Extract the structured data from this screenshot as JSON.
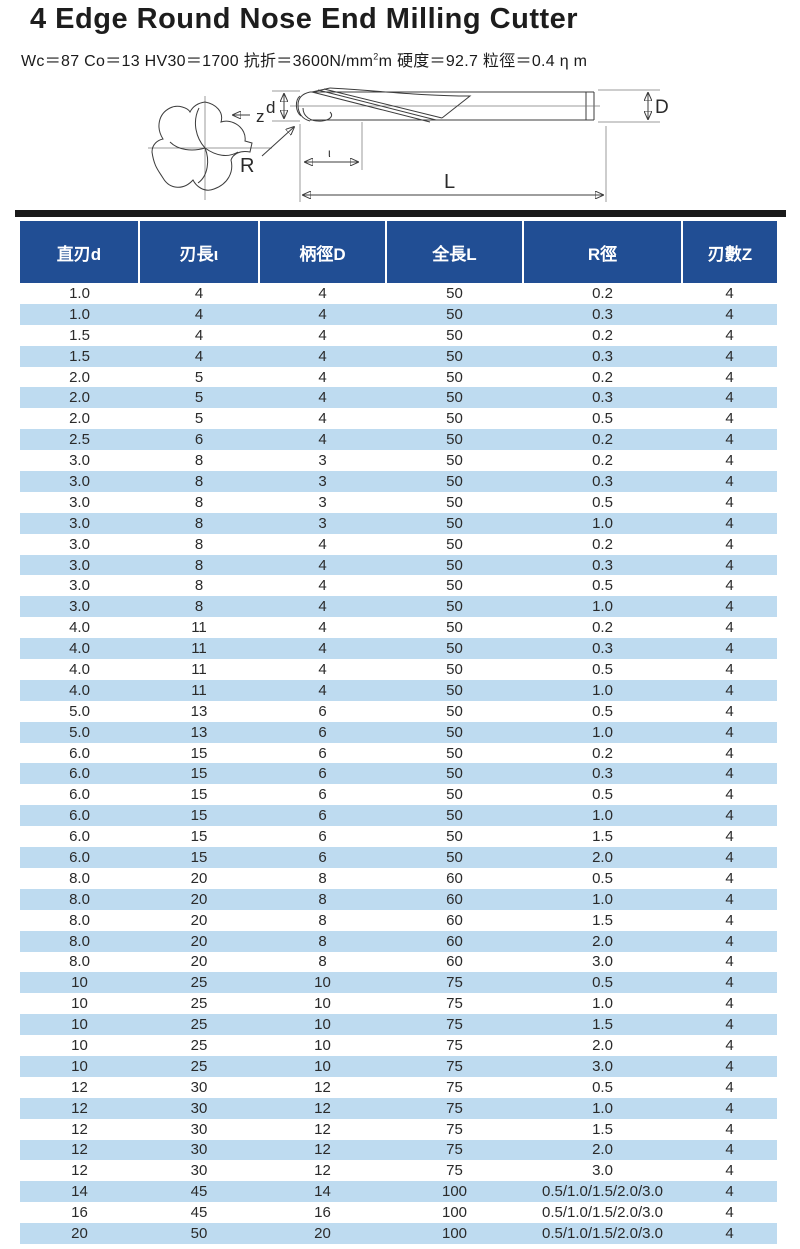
{
  "page": {
    "title": "4 Edge Round Nose End Milling Cutter",
    "spec_line": {
      "prefix": "Wc＝87 Co＝13 HV30＝1700 抗折＝3600N/mm",
      "sup": "2",
      "suffix": "m 硬度＝92.7 粒徑＝0.4 η m"
    }
  },
  "diagram": {
    "labels": {
      "flutes": "z",
      "corner_radius": "R",
      "cutting_diameter": "d",
      "shank_diameter": "D",
      "flute_length": "ι",
      "overall_length": "L"
    }
  },
  "table": {
    "columns": [
      "直刃d",
      "刃長ι",
      "柄徑D",
      "全長L",
      "R徑",
      "刃數Z"
    ],
    "rows": [
      [
        "1.0",
        "4",
        "4",
        "50",
        "0.2",
        "4"
      ],
      [
        "1.0",
        "4",
        "4",
        "50",
        "0.3",
        "4"
      ],
      [
        "1.5",
        "4",
        "4",
        "50",
        "0.2",
        "4"
      ],
      [
        "1.5",
        "4",
        "4",
        "50",
        "0.3",
        "4"
      ],
      [
        "2.0",
        "5",
        "4",
        "50",
        "0.2",
        "4"
      ],
      [
        "2.0",
        "5",
        "4",
        "50",
        "0.3",
        "4"
      ],
      [
        "2.0",
        "5",
        "4",
        "50",
        "0.5",
        "4"
      ],
      [
        "2.5",
        "6",
        "4",
        "50",
        "0.2",
        "4"
      ],
      [
        "3.0",
        "8",
        "3",
        "50",
        "0.2",
        "4"
      ],
      [
        "3.0",
        "8",
        "3",
        "50",
        "0.3",
        "4"
      ],
      [
        "3.0",
        "8",
        "3",
        "50",
        "0.5",
        "4"
      ],
      [
        "3.0",
        "8",
        "3",
        "50",
        "1.0",
        "4"
      ],
      [
        "3.0",
        "8",
        "4",
        "50",
        "0.2",
        "4"
      ],
      [
        "3.0",
        "8",
        "4",
        "50",
        "0.3",
        "4"
      ],
      [
        "3.0",
        "8",
        "4",
        "50",
        "0.5",
        "4"
      ],
      [
        "3.0",
        "8",
        "4",
        "50",
        "1.0",
        "4"
      ],
      [
        "4.0",
        "11",
        "4",
        "50",
        "0.2",
        "4"
      ],
      [
        "4.0",
        "11",
        "4",
        "50",
        "0.3",
        "4"
      ],
      [
        "4.0",
        "11",
        "4",
        "50",
        "0.5",
        "4"
      ],
      [
        "4.0",
        "11",
        "4",
        "50",
        "1.0",
        "4"
      ],
      [
        "5.0",
        "13",
        "6",
        "50",
        "0.5",
        "4"
      ],
      [
        "5.0",
        "13",
        "6",
        "50",
        "1.0",
        "4"
      ],
      [
        "6.0",
        "15",
        "6",
        "50",
        "0.2",
        "4"
      ],
      [
        "6.0",
        "15",
        "6",
        "50",
        "0.3",
        "4"
      ],
      [
        "6.0",
        "15",
        "6",
        "50",
        "0.5",
        "4"
      ],
      [
        "6.0",
        "15",
        "6",
        "50",
        "1.0",
        "4"
      ],
      [
        "6.0",
        "15",
        "6",
        "50",
        "1.5",
        "4"
      ],
      [
        "6.0",
        "15",
        "6",
        "50",
        "2.0",
        "4"
      ],
      [
        "8.0",
        "20",
        "8",
        "60",
        "0.5",
        "4"
      ],
      [
        "8.0",
        "20",
        "8",
        "60",
        "1.0",
        "4"
      ],
      [
        "8.0",
        "20",
        "8",
        "60",
        "1.5",
        "4"
      ],
      [
        "8.0",
        "20",
        "8",
        "60",
        "2.0",
        "4"
      ],
      [
        "8.0",
        "20",
        "8",
        "60",
        "3.0",
        "4"
      ],
      [
        "10",
        "25",
        "10",
        "75",
        "0.5",
        "4"
      ],
      [
        "10",
        "25",
        "10",
        "75",
        "1.0",
        "4"
      ],
      [
        "10",
        "25",
        "10",
        "75",
        "1.5",
        "4"
      ],
      [
        "10",
        "25",
        "10",
        "75",
        "2.0",
        "4"
      ],
      [
        "10",
        "25",
        "10",
        "75",
        "3.0",
        "4"
      ],
      [
        "12",
        "30",
        "12",
        "75",
        "0.5",
        "4"
      ],
      [
        "12",
        "30",
        "12",
        "75",
        "1.0",
        "4"
      ],
      [
        "12",
        "30",
        "12",
        "75",
        "1.5",
        "4"
      ],
      [
        "12",
        "30",
        "12",
        "75",
        "2.0",
        "4"
      ],
      [
        "12",
        "30",
        "12",
        "75",
        "3.0",
        "4"
      ],
      [
        "14",
        "45",
        "14",
        "100",
        "0.5/1.0/1.5/2.0/3.0",
        "4"
      ],
      [
        "16",
        "45",
        "16",
        "100",
        "0.5/1.0/1.5/2.0/3.0",
        "4"
      ],
      [
        "20",
        "50",
        "20",
        "100",
        "0.5/1.0/1.5/2.0/3.0",
        "4"
      ]
    ]
  },
  "colors": {
    "header_bg": "#214e94",
    "header_text": "#ffffff",
    "row_alt_bg": "#bedbf0",
    "body_text": "#2a2a2a",
    "rule_black": "#1a1a1a"
  }
}
